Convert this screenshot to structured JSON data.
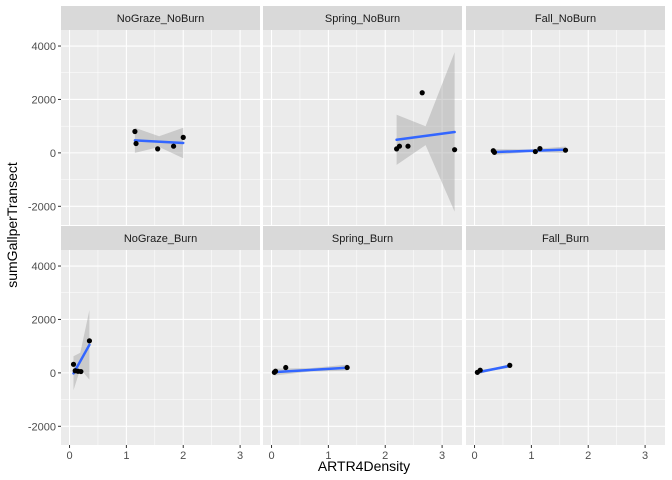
{
  "chart_data": {
    "type": "scatter",
    "xlabel": "ARTR4Density",
    "ylabel": "sumGallperTransect",
    "xlim": [
      -0.15,
      3.35
    ],
    "ylim": [
      -2700,
      4600
    ],
    "x_ticks": [
      0,
      1,
      2,
      3
    ],
    "y_ticks": [
      -2000,
      0,
      2000,
      4000
    ],
    "x_tick_labels": [
      "0",
      "1",
      "2",
      "3"
    ],
    "y_tick_labels": [
      "-2000",
      "0",
      "2000",
      "4000"
    ],
    "grid": true,
    "panels": [
      {
        "label": "NoGraze_NoBurn",
        "points": [
          [
            1.15,
            800
          ],
          [
            1.17,
            350
          ],
          [
            1.55,
            150
          ],
          [
            1.83,
            250
          ],
          [
            2.0,
            580
          ]
        ],
        "fit": [
          [
            1.15,
            470
          ],
          [
            2.0,
            370
          ]
        ],
        "band": [
          [
            1.15,
            0,
            940
          ],
          [
            1.575,
            220,
            620
          ],
          [
            2.0,
            -200,
            940
          ]
        ]
      },
      {
        "label": "Spring_NoBurn",
        "points": [
          [
            2.2,
            150
          ],
          [
            2.25,
            250
          ],
          [
            2.4,
            250
          ],
          [
            2.65,
            2250
          ],
          [
            3.22,
            120
          ]
        ],
        "fit": [
          [
            2.2,
            490
          ],
          [
            3.22,
            780
          ]
        ],
        "band": [
          [
            2.2,
            -450,
            1430
          ],
          [
            2.71,
            290,
            1000
          ],
          [
            3.22,
            -2200,
            3770
          ]
        ]
      },
      {
        "label": "Fall_NoBurn",
        "points": [
          [
            0.33,
            80
          ],
          [
            0.35,
            20
          ],
          [
            1.07,
            50
          ],
          [
            1.15,
            160
          ],
          [
            1.6,
            100
          ]
        ],
        "fit": [
          [
            0.33,
            30
          ],
          [
            1.6,
            120
          ]
        ],
        "band": [
          [
            0.33,
            -80,
            140
          ],
          [
            0.965,
            20,
            130
          ],
          [
            1.6,
            0,
            240
          ]
        ]
      },
      {
        "label": "NoGraze_Burn",
        "points": [
          [
            0.07,
            320
          ],
          [
            0.1,
            80
          ],
          [
            0.15,
            60
          ],
          [
            0.2,
            50
          ],
          [
            0.35,
            1200
          ]
        ],
        "fit": [
          [
            0.07,
            -20
          ],
          [
            0.35,
            1050
          ]
        ],
        "band": [
          [
            0.07,
            -650,
            620
          ],
          [
            0.19,
            150,
            750
          ],
          [
            0.35,
            -250,
            2350
          ]
        ]
      },
      {
        "label": "Spring_Burn",
        "points": [
          [
            0.05,
            20
          ],
          [
            0.07,
            60
          ],
          [
            0.25,
            200
          ],
          [
            1.33,
            200
          ]
        ],
        "fit": [
          [
            0.05,
            30
          ],
          [
            1.33,
            190
          ]
        ],
        "band": [
          [
            0.05,
            -100,
            160
          ],
          [
            0.69,
            50,
            180
          ],
          [
            1.33,
            80,
            310
          ]
        ]
      },
      {
        "label": "Fall_Burn",
        "points": [
          [
            0.05,
            20
          ],
          [
            0.1,
            100
          ],
          [
            0.62,
            280
          ]
        ],
        "fit": [
          [
            0.05,
            20
          ],
          [
            0.62,
            260
          ]
        ],
        "band": [
          [
            0.05,
            -60,
            100
          ],
          [
            0.335,
            100,
            180
          ],
          [
            0.62,
            190,
            330
          ]
        ]
      }
    ]
  }
}
